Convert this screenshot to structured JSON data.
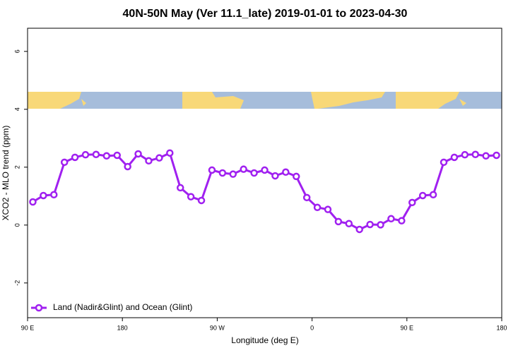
{
  "chart_data": {
    "type": "line",
    "title": "40N-50N May (Ver 11.1_late)   2019-01-01 to 2023-04-30",
    "x_label": "Longitude (deg E)",
    "y_label": "XCO2 - MLO trend (ppm)",
    "x": [
      95,
      105,
      115,
      125,
      135,
      145,
      155,
      165,
      175,
      185,
      195,
      205,
      215,
      225,
      235,
      245,
      255,
      265,
      275,
      285,
      295,
      305,
      315,
      325,
      335,
      345,
      355,
      365,
      375,
      385,
      395,
      405,
      415,
      425,
      435,
      445,
      455,
      465,
      475,
      485,
      495,
      505,
      515,
      525,
      535
    ],
    "series": [
      {
        "name": "Land (Nadir&Glint) and Ocean (Glint)",
        "color": "#a020f0",
        "values": [
          0.8,
          1.02,
          1.05,
          2.17,
          2.34,
          2.43,
          2.44,
          2.39,
          2.41,
          2.02,
          2.46,
          2.22,
          2.32,
          2.49,
          1.29,
          0.98,
          0.85,
          1.9,
          1.8,
          1.76,
          1.93,
          1.8,
          1.9,
          1.7,
          1.83,
          1.68,
          0.95,
          0.61,
          0.54,
          0.12,
          0.05,
          -0.15,
          0.02,
          0.01,
          0.22,
          0.15,
          0.78,
          1.02,
          1.05,
          2.17,
          2.34,
          2.43,
          2.44,
          2.39,
          2.41
        ]
      }
    ],
    "xlim": [
      90,
      540
    ],
    "xticks": [
      {
        "value": 90,
        "label": "90 E"
      },
      180,
      {
        "value": 270,
        "label": "90 W"
      },
      {
        "value": 360,
        "label": "0"
      },
      {
        "value": 450,
        "label": "90 E"
      },
      {
        "value": 540,
        "label": "180"
      }
    ],
    "ylim": [
      -3.2,
      6.8
    ],
    "yticks": [
      -2,
      0,
      2,
      4,
      6
    ],
    "legend": "bottom-left"
  }
}
